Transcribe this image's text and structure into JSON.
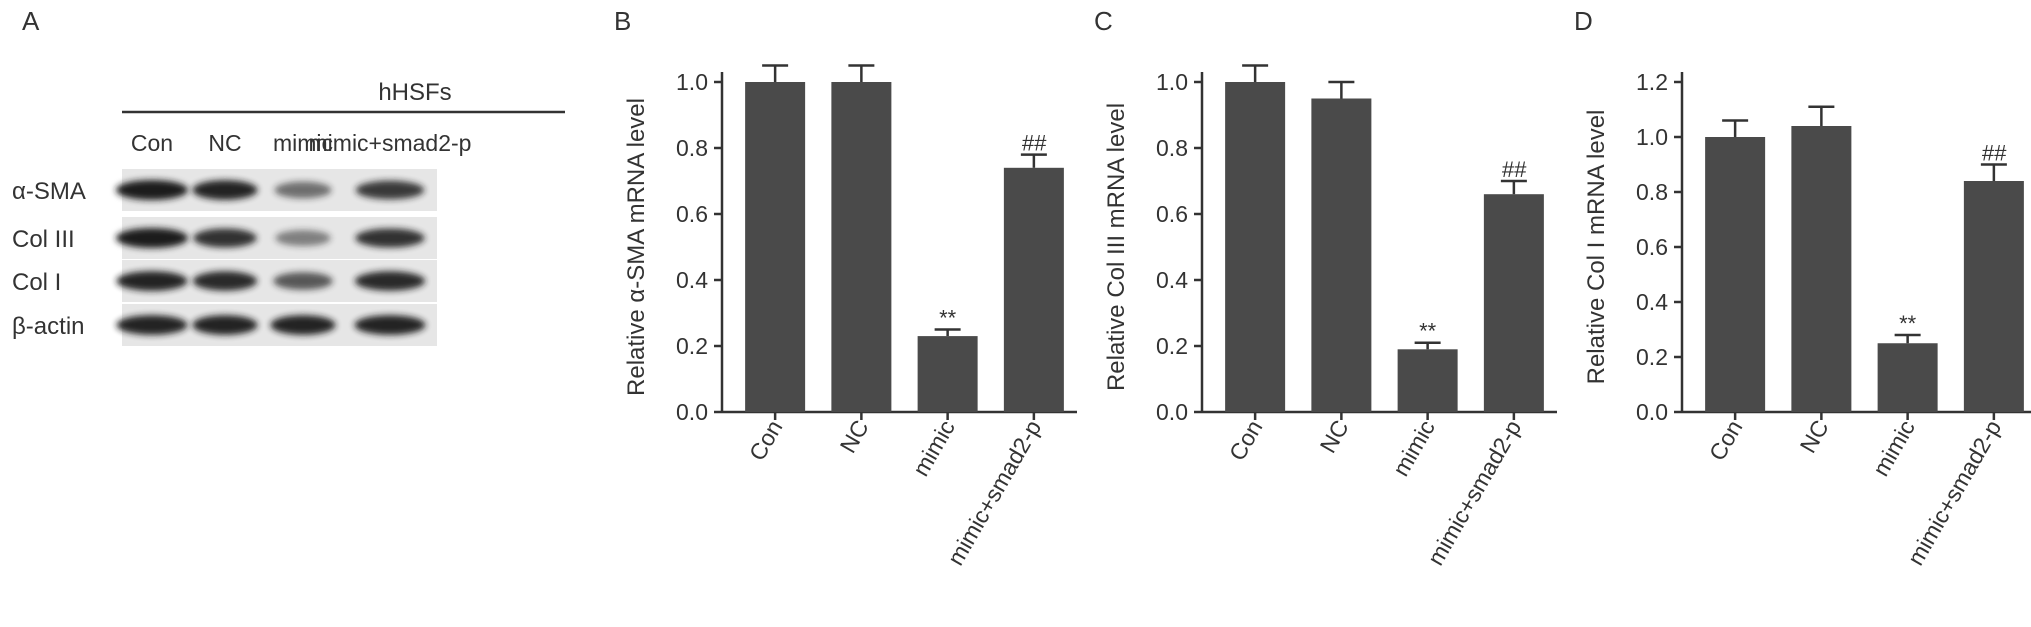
{
  "panel_a": {
    "letter": "A",
    "header": "hHSFs",
    "lanes": [
      "Con",
      "NC",
      "mimic",
      "mimic+smad2-p"
    ],
    "rows": [
      {
        "label": "α-SMA",
        "intensity": [
          1.0,
          0.95,
          0.45,
          0.8
        ]
      },
      {
        "label": "Col III",
        "intensity": [
          1.0,
          0.85,
          0.35,
          0.85
        ]
      },
      {
        "label": "Col I",
        "intensity": [
          0.95,
          0.9,
          0.6,
          0.9
        ]
      },
      {
        "label": "β-actin",
        "intensity": [
          0.95,
          0.95,
          0.95,
          0.95
        ]
      }
    ]
  },
  "colors": {
    "bar": "#4a4a4a",
    "axis": "#333333",
    "blot_bg": "#e6e6e6",
    "band": "#1a1a1a"
  },
  "chart_data": [
    {
      "panel": "B",
      "type": "bar",
      "categories": [
        "Con",
        "NC",
        "mimic",
        "mimic+smad2-p"
      ],
      "values": [
        1.0,
        1.0,
        0.23,
        0.74
      ],
      "errors": [
        0.05,
        0.05,
        0.02,
        0.04
      ],
      "annotations": [
        "",
        "",
        "**",
        "##"
      ],
      "ylabel": "Relative α-SMA mRNA level",
      "ylim": [
        0,
        1.0
      ],
      "yticks": [
        "0.0",
        "0.2",
        "0.4",
        "0.6",
        "0.8",
        "1.0"
      ]
    },
    {
      "panel": "C",
      "type": "bar",
      "categories": [
        "Con",
        "NC",
        "mimic",
        "mimic+smad2-p"
      ],
      "values": [
        1.0,
        0.95,
        0.19,
        0.66
      ],
      "errors": [
        0.05,
        0.05,
        0.02,
        0.04
      ],
      "annotations": [
        "",
        "",
        "**",
        "##"
      ],
      "ylabel": "Relative Col III mRNA level",
      "ylim": [
        0,
        1.0
      ],
      "yticks": [
        "0.0",
        "0.2",
        "0.4",
        "0.6",
        "0.8",
        "1.0"
      ]
    },
    {
      "panel": "D",
      "type": "bar",
      "categories": [
        "Con",
        "NC",
        "mimic",
        "mimic+smad2-p"
      ],
      "values": [
        1.0,
        1.04,
        0.25,
        0.84
      ],
      "errors": [
        0.06,
        0.07,
        0.03,
        0.06
      ],
      "annotations": [
        "",
        "",
        "**",
        "##"
      ],
      "ylabel": "Relative Col I mRNA level",
      "ylim": [
        0,
        1.2
      ],
      "yticks": [
        "0.0",
        "0.2",
        "0.4",
        "0.6",
        "0.8",
        "1.0",
        "1.2"
      ]
    }
  ]
}
